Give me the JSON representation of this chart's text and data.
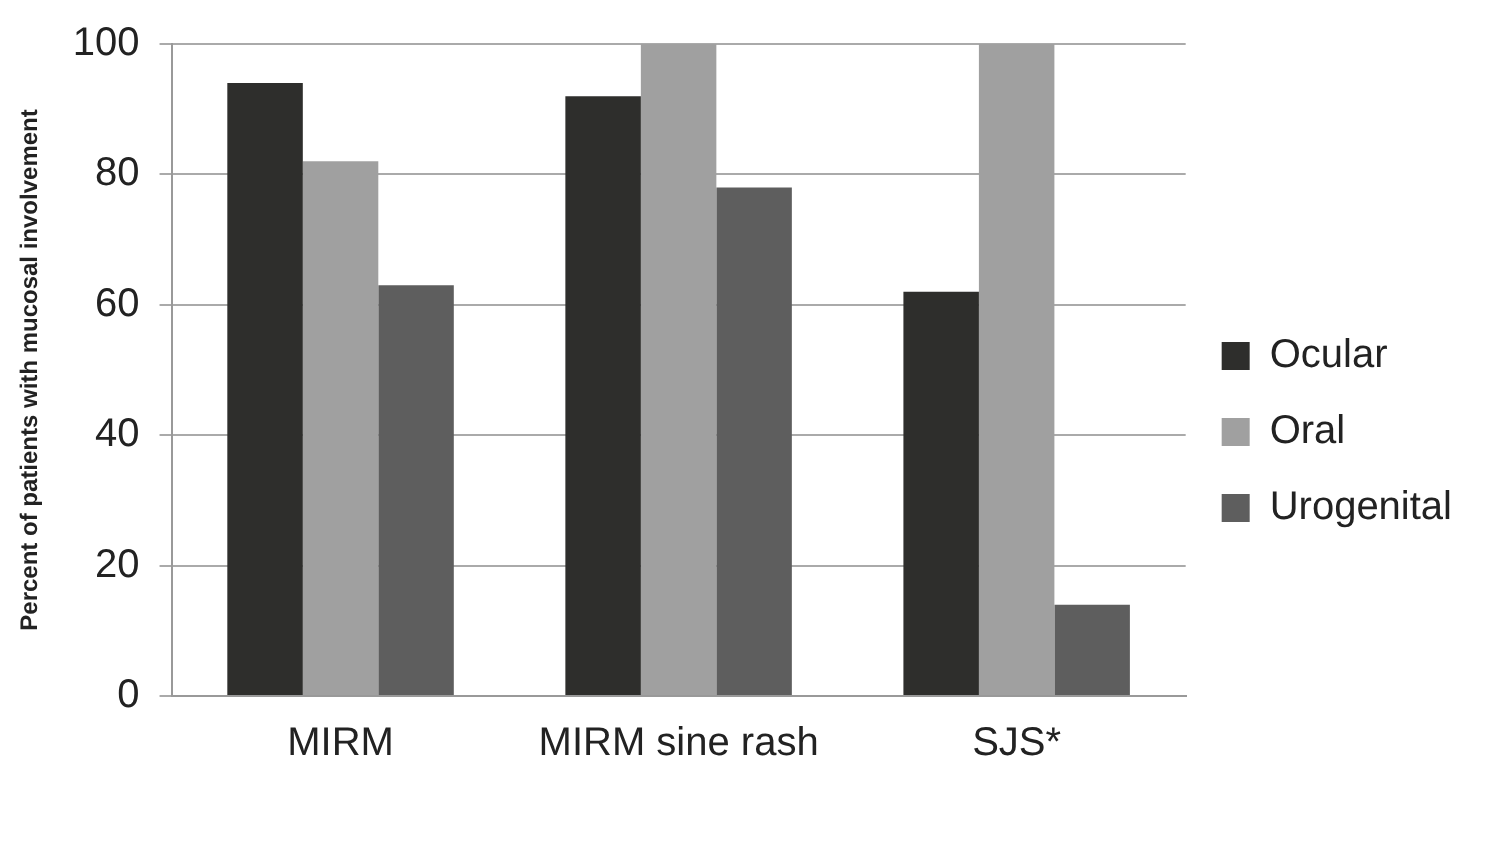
{
  "chart_data": {
    "type": "bar",
    "ylabel": "Percent of patients with mucosal involvement",
    "categories": [
      "MIRM",
      "MIRM sine rash",
      "SJS*"
    ],
    "series": [
      {
        "name": "Ocular",
        "color": "#2e2e2c",
        "values": [
          94,
          92,
          62
        ]
      },
      {
        "name": "Oral",
        "color": "#a0a0a0",
        "values": [
          82,
          100,
          100
        ]
      },
      {
        "name": "Urogenital",
        "color": "#5e5e5e",
        "values": [
          63,
          78,
          14
        ]
      }
    ],
    "ylim": [
      0,
      100
    ],
    "yticks": [
      0,
      20,
      40,
      60,
      80,
      100
    ],
    "grid": "y",
    "legend": "right"
  }
}
